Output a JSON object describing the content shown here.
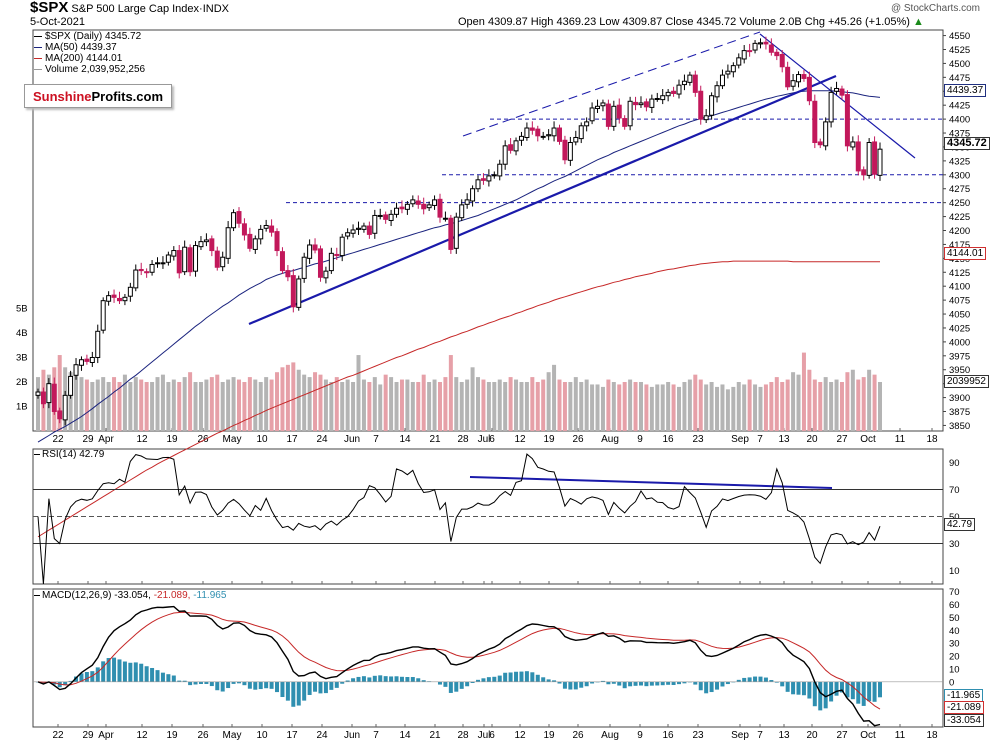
{
  "header": {
    "symbol": "$SPX",
    "name": "S&P 500 Large Cap Index",
    "exchange": "INDX",
    "date": "5-Oct-2021",
    "ohlc": "Open 4309.87   High 4369.23   Low 4309.87   Close 4345.72   Volume 2.0B   Chg +45.26 (+1.05%)",
    "ohlc_arrow": "▲",
    "credit": "@ StockCharts.com"
  },
  "legend": [
    {
      "text": "$SPX (Daily) 4345.72",
      "color": "#000000"
    },
    {
      "text": "MA(50) 4439.37",
      "color": "#1a237e"
    },
    {
      "text": "MA(200) 4144.01",
      "color": "#c62828"
    },
    {
      "text": "Volume 2,039,952,256",
      "color": "#888888"
    }
  ],
  "logo": {
    "part1": "Sunshine",
    "part2": "Profits.com"
  },
  "rsi_label": "RSI(14) 42.79",
  "macd_label": {
    "main": "MACD(12,26,9) -33.054,",
    "signal": " -21.089,",
    "hist": " -11.965"
  },
  "tags": {
    "price": "4345.72",
    "ma50": "4439.37",
    "ma200": "4144.01",
    "volume": "2039952",
    "rsi": "42.79",
    "macd_hist": "-11.965",
    "macd_signal": "-21.089",
    "macd": "-33.054"
  },
  "colors": {
    "up": "#000000",
    "down": "#c2185b",
    "ma50": "#1a237e",
    "ma200": "#c62828",
    "trend": "#1a1aaa",
    "vol_down": "#e6a0a8",
    "vol_up": "#b4b4b4",
    "macd_hist": "#2f8fb0"
  },
  "chart_data": {
    "type": "candlestick",
    "price_axis": {
      "ticks": [
        3850,
        3875,
        3900,
        3925,
        3950,
        3975,
        4000,
        4025,
        4050,
        4075,
        4100,
        4125,
        4150,
        4175,
        4200,
        4225,
        4250,
        4275,
        4300,
        4325,
        4350,
        4375,
        4400,
        4425,
        4450,
        4475,
        4500,
        4525,
        4550
      ],
      "range": [
        3840,
        4560
      ]
    },
    "volume_axis": {
      "ticks": [
        "1B",
        "2B",
        "3B",
        "4B",
        "5B"
      ]
    },
    "date_axis": [
      "22",
      "29",
      "Apr",
      "12",
      "19",
      "26",
      "May",
      "10",
      "17",
      "24",
      "Jun",
      "7",
      "14",
      "21",
      "28",
      "Jul",
      "6",
      "12",
      "19",
      "26",
      "Aug",
      "9",
      "16",
      "23",
      "Sep",
      "7",
      "13",
      "20",
      "27",
      "Oct",
      "11",
      "18"
    ],
    "close": [
      3910,
      3889,
      3925,
      3875,
      3862,
      3904,
      3938,
      3959,
      3968,
      3965,
      3972,
      4019,
      4074,
      4083,
      4080,
      4074,
      4080,
      4098,
      4129,
      4128,
      4125,
      4139,
      4142,
      4142,
      4156,
      4164,
      4124,
      4170,
      4126,
      4173,
      4180,
      4183,
      4164,
      4134,
      4152,
      4205,
      4232,
      4213,
      4192,
      4168,
      4185,
      4202,
      4209,
      4197,
      4164,
      4128,
      4117,
      4063,
      4113,
      4152,
      4174,
      4165,
      4116,
      4127,
      4159,
      4155,
      4188,
      4196,
      4201,
      4204,
      4208,
      4193,
      4227,
      4227,
      4220,
      4229,
      4240,
      4239,
      4247,
      4255,
      4247,
      4239,
      4246,
      4255,
      4224,
      4222,
      4166,
      4224,
      4246,
      4255,
      4275,
      4291,
      4290,
      4298,
      4300,
      4319,
      4352,
      4344,
      4361,
      4369,
      4384,
      4380,
      4370,
      4369,
      4372,
      4384,
      4360,
      4327,
      4358,
      4367,
      4388,
      4395,
      4420,
      4423,
      4429,
      4387,
      4423,
      4402,
      4387,
      4432,
      4426,
      4429,
      4422,
      4436,
      4437,
      4442,
      4448,
      4446,
      4461,
      4468,
      4479,
      4448,
      4400,
      4406,
      4442,
      4460,
      4479,
      4486,
      4496,
      4510,
      4523,
      4522,
      4536,
      4537,
      4535,
      4520,
      4514,
      4494,
      4458,
      4469,
      4480,
      4473,
      4433,
      4358,
      4354,
      4395,
      4448,
      4455,
      4443,
      4352,
      4359,
      4307,
      4300,
      4358,
      4301,
      4346
    ],
    "volume_bn": [
      2.2,
      2.5,
      2.3,
      2.6,
      3.1,
      2.6,
      2.4,
      2.3,
      2.2,
      2.1,
      2.0,
      2.1,
      2.2,
      2.0,
      2.2,
      2.0,
      2.3,
      2.0,
      2.2,
      2.1,
      2.0,
      2.0,
      2.2,
      2.3,
      2.0,
      2.1,
      2.0,
      2.2,
      2.4,
      2.0,
      2.0,
      2.1,
      2.2,
      2.3,
      2.0,
      2.1,
      2.2,
      2.1,
      2.0,
      2.2,
      2.1,
      2.0,
      2.2,
      2.1,
      2.4,
      2.6,
      2.7,
      2.8,
      2.5,
      2.3,
      2.2,
      2.4,
      2.3,
      2.1,
      2.0,
      2.2,
      2.0,
      2.1,
      2.0,
      3.1,
      2.1,
      2.0,
      2.2,
      1.9,
      2.3,
      2.2,
      2.0,
      2.1,
      2.1,
      2.0,
      2.0,
      2.3,
      2.0,
      2.1,
      2.0,
      2.2,
      3.1,
      2.2,
      2.0,
      2.1,
      2.6,
      2.2,
      2.1,
      2.0,
      2.0,
      2.1,
      2.0,
      2.2,
      2.1,
      2.0,
      2.0,
      2.2,
      2.0,
      2.1,
      2.4,
      2.7,
      2.1,
      2.0,
      2.0,
      2.2,
      2.0,
      2.1,
      1.9,
      1.9,
      1.8,
      2.1,
      2.0,
      1.9,
      2.0,
      2.1,
      2.0,
      2.0,
      1.9,
      1.8,
      1.9,
      1.9,
      2.0,
      1.9,
      1.8,
      2.0,
      2.1,
      2.3,
      2.1,
      1.9,
      2.0,
      1.8,
      1.9,
      1.7,
      1.8,
      2.0,
      1.9,
      2.1,
      1.9,
      1.8,
      1.9,
      2.0,
      2.2,
      2.0,
      2.1,
      2.4,
      2.3,
      3.2,
      2.5,
      2.1,
      2.0,
      2.2,
      2.0,
      2.1,
      2.0,
      2.4,
      2.5,
      2.1,
      2.2,
      2.5,
      2.3,
      2.0
    ],
    "ma50": [
      3820,
      3826,
      3832,
      3838,
      3843,
      3848,
      3854,
      3860,
      3866,
      3873,
      3880,
      3888,
      3895,
      3902,
      3910,
      3917,
      3925,
      3933,
      3940,
      3948,
      3956,
      3964,
      3972,
      3980,
      3988,
      3996,
      4004,
      4012,
      4020,
      4028,
      4035,
      4043,
      4050,
      4057,
      4064,
      4070,
      4077,
      4084,
      4090,
      4096,
      4101,
      4106,
      4112,
      4116,
      4120,
      4123,
      4126,
      4128,
      4131,
      4134,
      4137,
      4140,
      4142,
      4145,
      4148,
      4151,
      4154,
      4157,
      4160,
      4163,
      4166,
      4169,
      4172,
      4175,
      4178,
      4181,
      4184,
      4187,
      4190,
      4193,
      4196,
      4199,
      4202,
      4205,
      4207,
      4210,
      4212,
      4215,
      4218,
      4221,
      4224,
      4227,
      4231,
      4235,
      4239,
      4243,
      4247,
      4251,
      4255,
      4260,
      4265,
      4270,
      4275,
      4279,
      4284,
      4289,
      4293,
      4297,
      4302,
      4307,
      4312,
      4317,
      4322,
      4327,
      4331,
      4335,
      4340,
      4344,
      4348,
      4352,
      4356,
      4360,
      4364,
      4368,
      4372,
      4376,
      4380,
      4384,
      4388,
      4391,
      4395,
      4398,
      4401,
      4404,
      4406,
      4409,
      4412,
      4415,
      4418,
      4421,
      4424,
      4427,
      4430,
      4433,
      4436,
      4438,
      4441,
      4443,
      4445,
      4447,
      4449,
      4450,
      4451,
      4451,
      4451,
      4451,
      4451,
      4450,
      4449,
      4448,
      4447,
      4445,
      4443,
      4441,
      4440,
      4439
    ],
    "ma200": [
      3650,
      3656,
      3662,
      3668,
      3674,
      3680,
      3686,
      3692,
      3698,
      3704,
      3710,
      3716,
      3722,
      3728,
      3734,
      3740,
      3746,
      3752,
      3758,
      3764,
      3770,
      3775,
      3781,
      3786,
      3791,
      3796,
      3801,
      3806,
      3811,
      3816,
      3821,
      3826,
      3831,
      3836,
      3840,
      3845,
      3850,
      3854,
      3859,
      3863,
      3868,
      3872,
      3877,
      3881,
      3885,
      3889,
      3893,
      3897,
      3901,
      3905,
      3909,
      3913,
      3917,
      3921,
      3925,
      3929,
      3933,
      3937,
      3940,
      3944,
      3948,
      3952,
      3956,
      3960,
      3964,
      3968,
      3972,
      3975,
      3979,
      3983,
      3987,
      3990,
      3994,
      3998,
      4001,
      4005,
      4009,
      4012,
      4016,
      4019,
      4023,
      4027,
      4030,
      4034,
      4037,
      4041,
      4044,
      4047,
      4051,
      4054,
      4058,
      4061,
      4065,
      4068,
      4071,
      4075,
      4078,
      4081,
      4084,
      4087,
      4090,
      4093,
      4096,
      4099,
      4101,
      4104,
      4107,
      4109,
      4112,
      4114,
      4117,
      4119,
      4121,
      4123,
      4126,
      4128,
      4130,
      4131,
      4133,
      4135,
      4137,
      4138,
      4140,
      4141,
      4142,
      4143,
      4144,
      4144,
      4145,
      4145,
      4145,
      4145,
      4145,
      4145,
      4145,
      4145,
      4145,
      4145,
      4145,
      4144,
      4144,
      4144,
      4144,
      4144,
      4144,
      4144,
      4144,
      4144,
      4144,
      4144,
      4144,
      4144,
      4144,
      4144,
      4144,
      4144
    ],
    "levels": [
      4400,
      4300,
      4250
    ],
    "rsi": {
      "ticks": [
        10,
        30,
        50,
        70,
        90
      ],
      "range": [
        0,
        100
      ],
      "last": 42.79
    },
    "macd": {
      "ticks": [
        -30,
        -20,
        -10,
        0,
        10,
        20,
        30,
        40,
        50,
        60,
        70
      ],
      "range": [
        -35,
        72
      ],
      "last_macd": -33.054,
      "last_signal": -21.089,
      "last_hist": -11.965
    }
  }
}
